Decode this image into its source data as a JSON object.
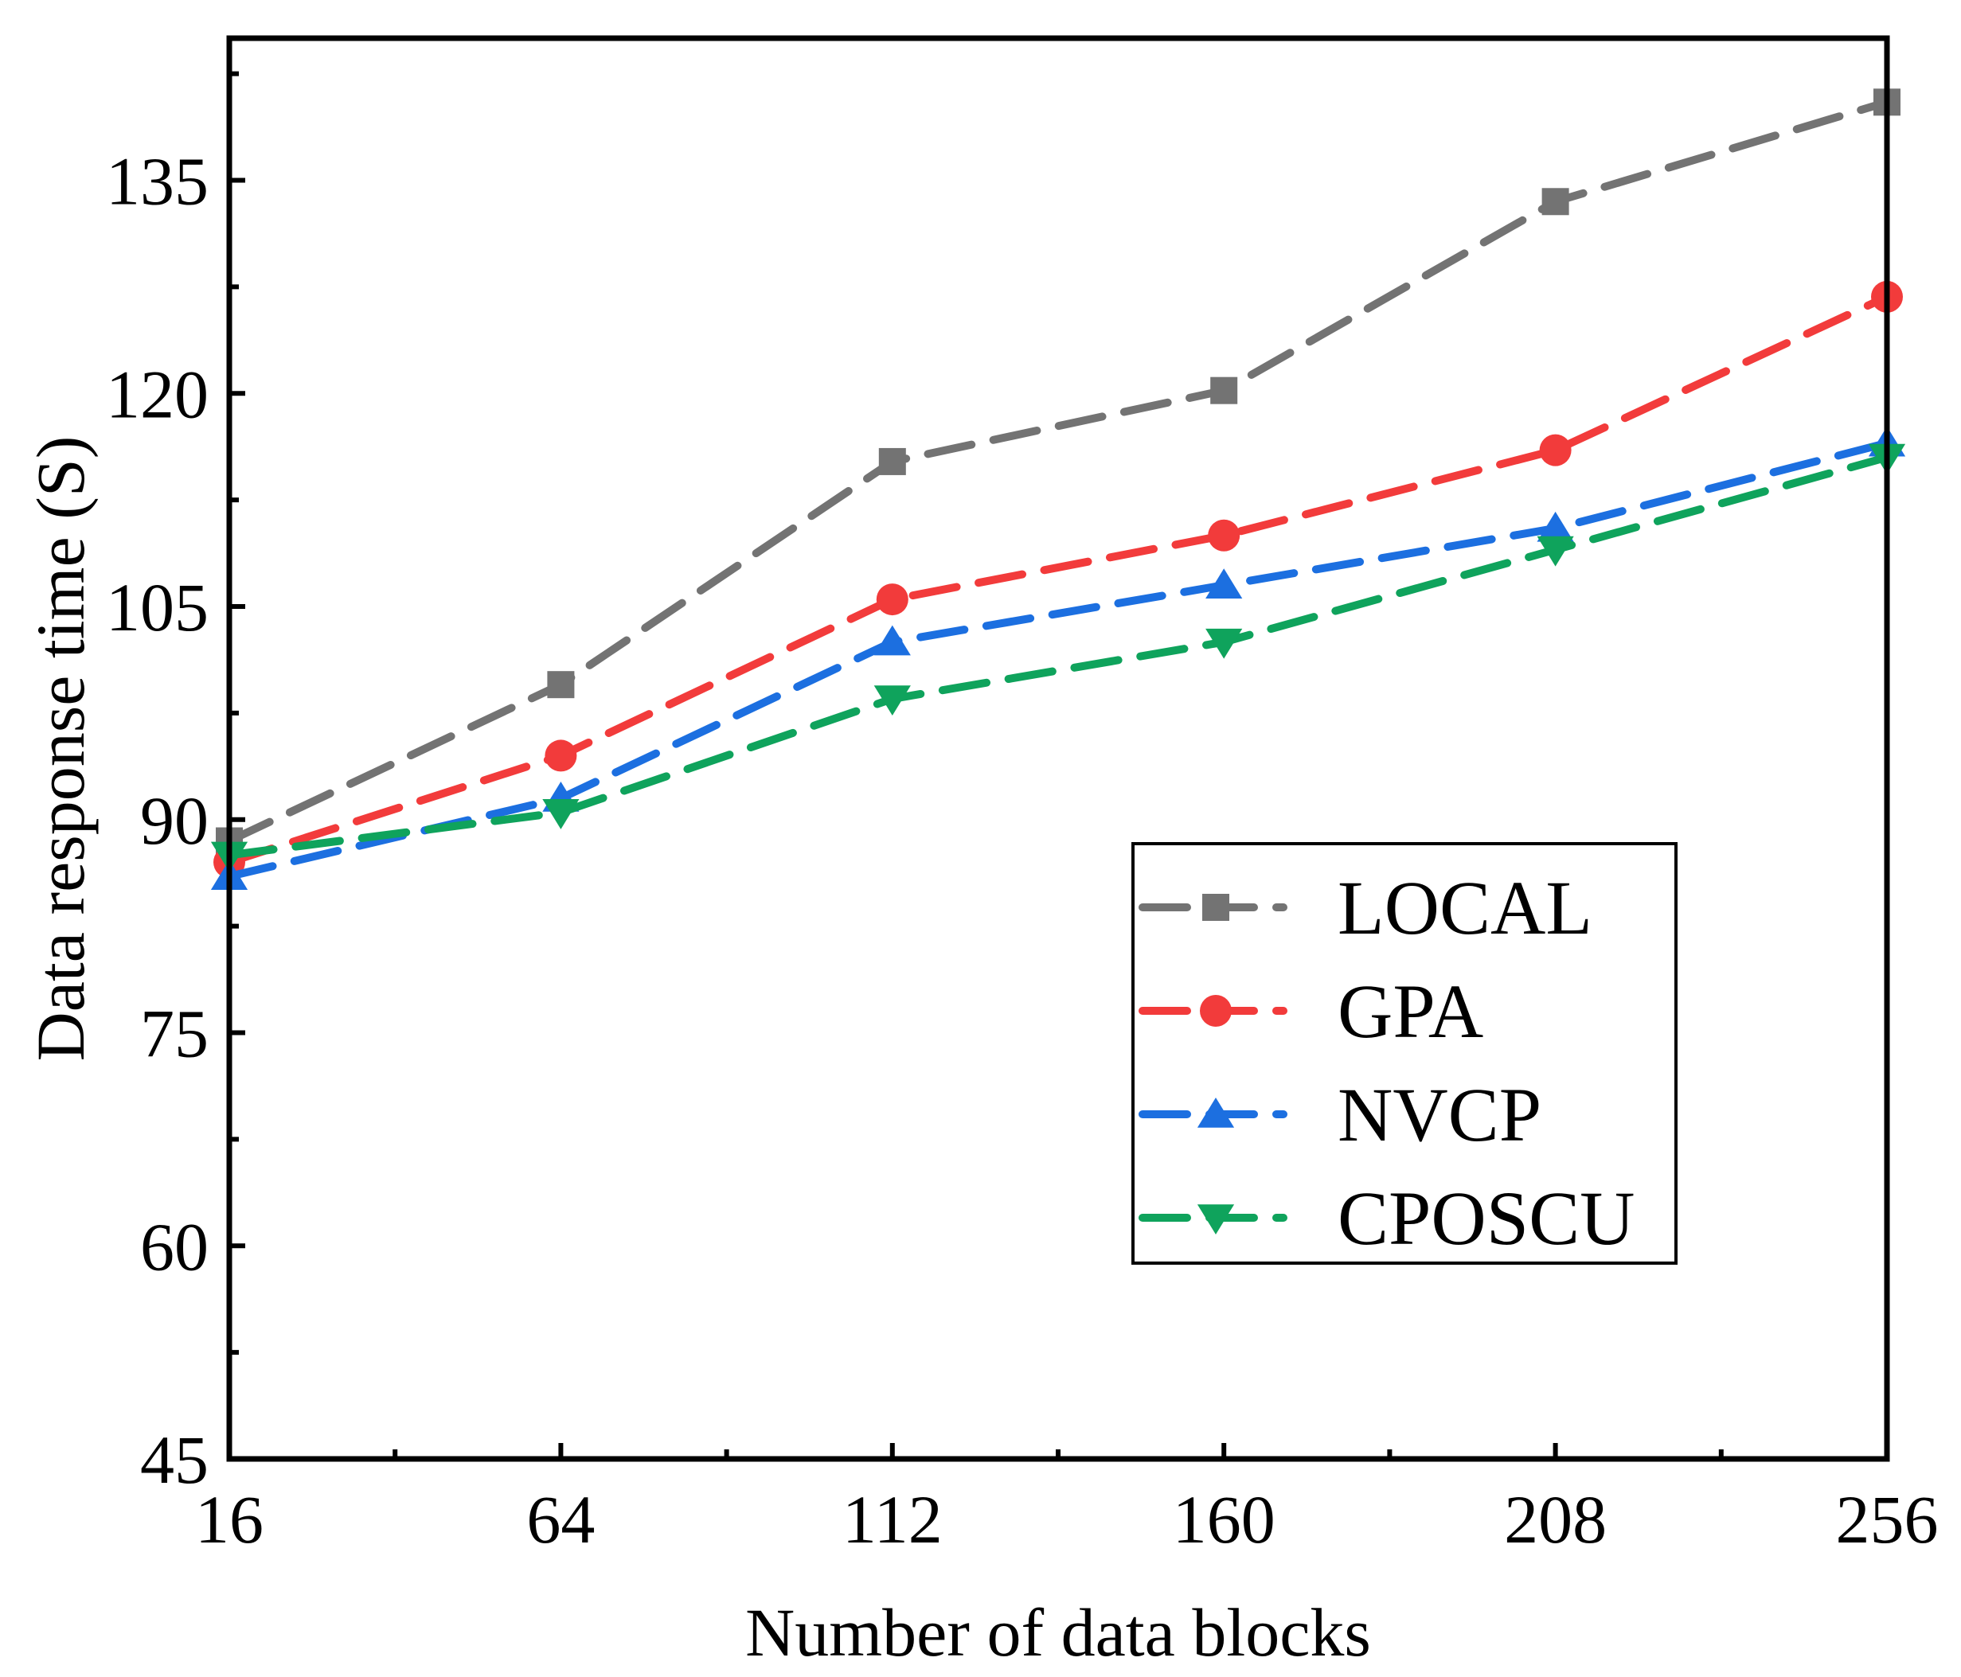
{
  "chart_data": {
    "type": "line",
    "title": "",
    "xlabel": "Number of data blocks",
    "ylabel": "Data response time (S)",
    "x": [
      16,
      64,
      112,
      160,
      208,
      256
    ],
    "xlim": [
      16,
      256
    ],
    "ylim": [
      45,
      145
    ],
    "xticks": [
      16,
      64,
      112,
      160,
      208,
      256
    ],
    "yticks": [
      45,
      60,
      75,
      90,
      105,
      120,
      135
    ],
    "grid": false,
    "legend_position": "lower-right",
    "series": [
      {
        "name": "LOCAL",
        "color": "#737373",
        "marker": "square",
        "values": [
          88.5,
          99.5,
          115.2,
          120.2,
          133.5,
          140.5
        ]
      },
      {
        "name": "GPA",
        "color": "#f23b3b",
        "marker": "circle",
        "values": [
          87.0,
          94.5,
          105.5,
          110.0,
          116.0,
          126.8
        ]
      },
      {
        "name": "NVCP",
        "color": "#1c6fe0",
        "marker": "triangle-up",
        "values": [
          86.0,
          91.5,
          102.5,
          106.5,
          110.5,
          116.5
        ]
      },
      {
        "name": "CPOSCU",
        "color": "#0fa35c",
        "marker": "triangle-down",
        "values": [
          87.5,
          90.5,
          98.5,
          102.5,
          109.0,
          115.5
        ]
      }
    ]
  }
}
